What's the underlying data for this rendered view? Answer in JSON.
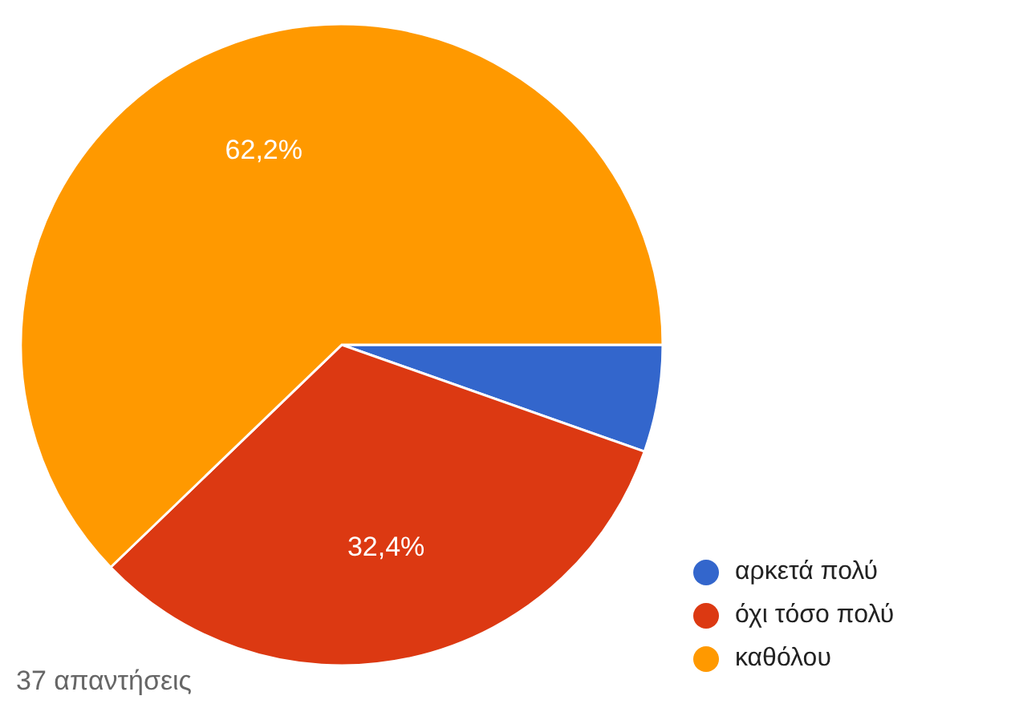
{
  "chart_data": {
    "type": "pie",
    "categories": [
      "αρκετά πολύ",
      "όχι τόσο πολύ",
      "καθόλου"
    ],
    "values": [
      5.4,
      32.4,
      62.2
    ],
    "colors": [
      "#3366cc",
      "#dc3912",
      "#ff9900"
    ],
    "value_labels": [
      null,
      "32,4%",
      "62,2%"
    ],
    "legend": "bottom right",
    "annotations": [
      "37 απαντήσεις"
    ]
  }
}
